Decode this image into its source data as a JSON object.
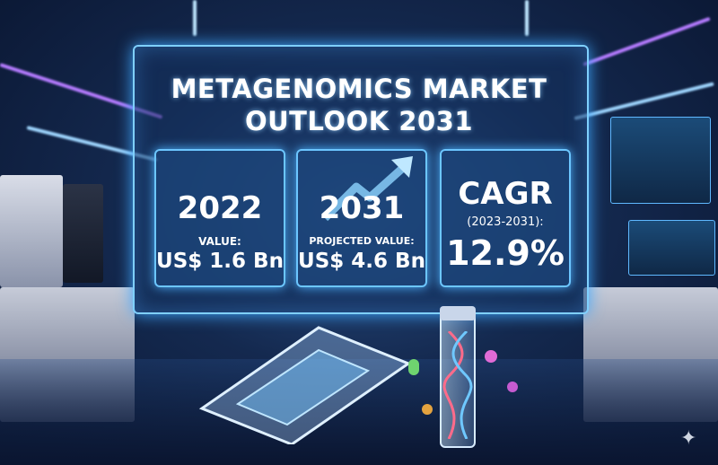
{
  "title": {
    "line1": "METAGENOMICS MARKET",
    "line2": "OUTLOOK 2031"
  },
  "cards": [
    {
      "year": "2022",
      "label": "VALUE:",
      "value": "US$ 1.6 Bn"
    },
    {
      "year": "2031",
      "label": "PROJECTED VALUE:",
      "value": "US$ 4.6 Bn",
      "icon": "trend-arrow-up-icon"
    },
    {
      "heading": "CAGR",
      "period": "(2023-2031):",
      "value": "12.9%"
    }
  ],
  "colors": {
    "accent": "#6cc6ff",
    "background": "#14294f",
    "beam_purple": "#c77dff"
  }
}
